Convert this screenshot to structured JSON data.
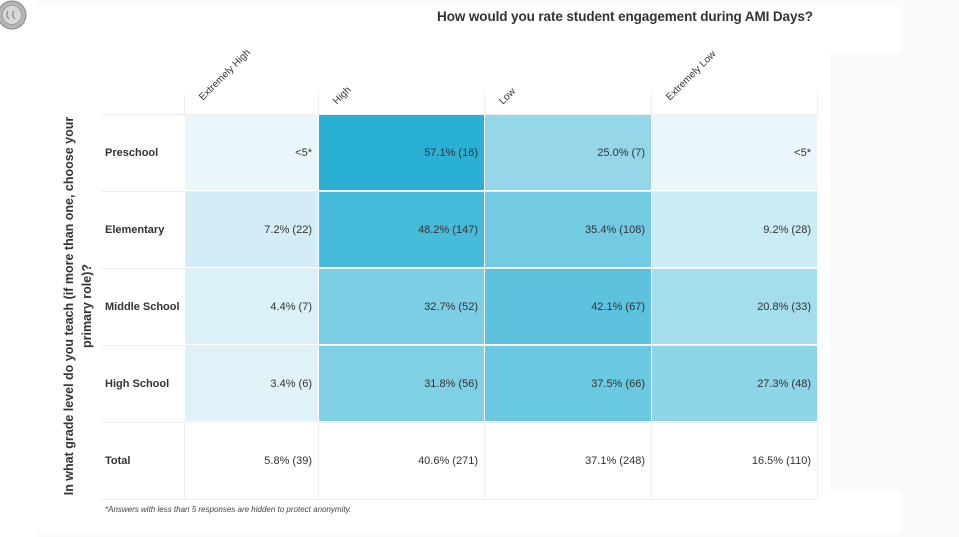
{
  "logo": {
    "icon": "seal-logo-icon"
  },
  "chart_data": {
    "type": "heatmap",
    "title": "How would you rate student engagement during AMI Days?",
    "xlabel": "How would you rate student engagement during AMI Days?",
    "ylabel": "In what grade level do you teach (if more than one, choose your primary role)?",
    "columns": [
      "Extremely High",
      "High",
      "Low",
      "Extremely Low"
    ],
    "rows": [
      {
        "label": "Preschool",
        "values": [
          null,
          57.1,
          25.0,
          null
        ],
        "counts": [
          null,
          16,
          7,
          null
        ],
        "display": [
          "<5*",
          "57.1% (16)",
          "25.0% (7)",
          "<5*"
        ]
      },
      {
        "label": "Elementary",
        "values": [
          7.2,
          48.2,
          35.4,
          9.2
        ],
        "counts": [
          22,
          147,
          108,
          28
        ],
        "display": [
          "7.2% (22)",
          "48.2% (147)",
          "35.4% (108)",
          "9.2% (28)"
        ]
      },
      {
        "label": "Middle School",
        "values": [
          4.4,
          32.7,
          42.1,
          20.8
        ],
        "counts": [
          7,
          52,
          67,
          33
        ],
        "display": [
          "4.4% (7)",
          "32.7% (52)",
          "42.1% (67)",
          "20.8% (33)"
        ]
      },
      {
        "label": "High School",
        "values": [
          3.4,
          31.8,
          37.5,
          27.3
        ],
        "counts": [
          6,
          56,
          66,
          48
        ],
        "display": [
          "3.4% (6)",
          "31.8% (56)",
          "37.5% (66)",
          "27.3% (48)"
        ]
      }
    ],
    "total": {
      "label": "Total",
      "values": [
        5.8,
        40.6,
        37.1,
        16.5
      ],
      "counts": [
        39,
        271,
        248,
        110
      ],
      "display": [
        "5.8% (39)",
        "40.6% (271)",
        "37.1% (248)",
        "16.5% (110)"
      ]
    },
    "suppressed_text": "<5*",
    "color_scale": {
      "low": "#eaf6fa",
      "high": "#29b0d4",
      "min": 0,
      "max": 57.1
    },
    "footnote": "*Answers with less than 5 responses are hidden to protect anonymity."
  },
  "y_axis_label_lines": [
    "In what grade level do you teach (if more than one, choose your",
    "primary role)?"
  ]
}
